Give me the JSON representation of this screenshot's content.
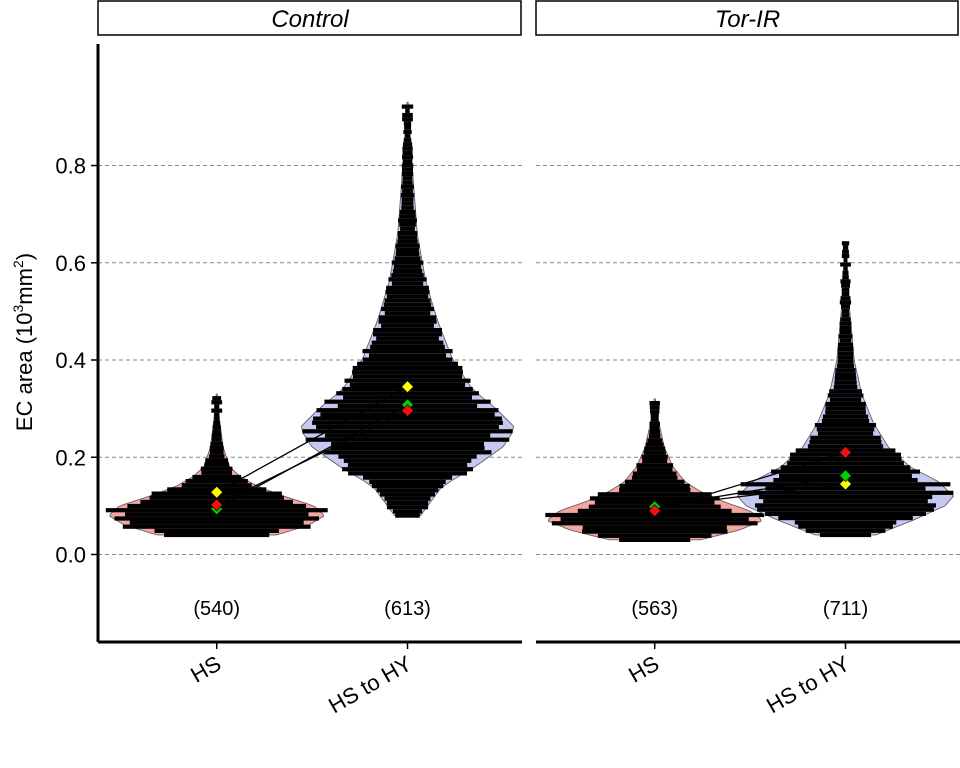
{
  "chart_data": {
    "type": "violin",
    "ylabel_main": "EC area (10",
    "ylabel_sup1": "3",
    "ylabel_mid": "mm",
    "ylabel_sup2": "2",
    "ylabel_end": ")",
    "ylim": [
      -0.18,
      1.05
    ],
    "yticks": [
      {
        "value": 0.0,
        "label": "0.0"
      },
      {
        "value": 0.2,
        "label": "0.2"
      },
      {
        "value": 0.4,
        "label": "0.4"
      },
      {
        "value": 0.6,
        "label": "0.6"
      },
      {
        "value": 0.8,
        "label": "0.8"
      }
    ],
    "grid": "horizontal-dashed",
    "categories": [
      "HS",
      "HS to HY"
    ],
    "colors": {
      "HS": "#f4a6a0",
      "HS to HY": "#c5c8f0",
      "replicate_1": "#ffff00",
      "replicate_2": "#00cc00",
      "replicate_3": "#ee1111",
      "beeswarm": "#000000"
    },
    "panels": [
      {
        "title": "Control",
        "groups": [
          {
            "category": "HS",
            "count_label": "(540)",
            "min": 0.04,
            "max": 0.33,
            "profile": [
              [
                0.04,
                0.55
              ],
              [
                0.06,
                0.85
              ],
              [
                0.08,
                1.0
              ],
              [
                0.1,
                0.9
              ],
              [
                0.12,
                0.62
              ],
              [
                0.14,
                0.38
              ],
              [
                0.16,
                0.22
              ],
              [
                0.18,
                0.12
              ],
              [
                0.22,
                0.06
              ],
              [
                0.27,
                0.03
              ],
              [
                0.33,
                0.005
              ]
            ],
            "means": [
              0.128,
              0.094,
              0.102
            ]
          },
          {
            "category": "HS to HY",
            "count_label": "(613)",
            "min": 0.08,
            "max": 0.93,
            "profile": [
              [
                0.08,
                0.12
              ],
              [
                0.14,
                0.32
              ],
              [
                0.18,
                0.62
              ],
              [
                0.22,
                0.88
              ],
              [
                0.26,
                1.0
              ],
              [
                0.3,
                0.82
              ],
              [
                0.34,
                0.6
              ],
              [
                0.4,
                0.42
              ],
              [
                0.48,
                0.28
              ],
              [
                0.56,
                0.17
              ],
              [
                0.66,
                0.09
              ],
              [
                0.78,
                0.05
              ],
              [
                0.93,
                0.005
              ]
            ],
            "means": [
              0.345,
              0.308,
              0.296
            ]
          }
        ]
      },
      {
        "title": "Tor-IR",
        "groups": [
          {
            "category": "HS",
            "count_label": "(563)",
            "min": 0.03,
            "max": 0.32,
            "profile": [
              [
                0.03,
                0.42
              ],
              [
                0.05,
                0.78
              ],
              [
                0.07,
                1.0
              ],
              [
                0.09,
                0.88
              ],
              [
                0.11,
                0.62
              ],
              [
                0.13,
                0.42
              ],
              [
                0.15,
                0.28
              ],
              [
                0.18,
                0.17
              ],
              [
                0.22,
                0.09
              ],
              [
                0.27,
                0.04
              ],
              [
                0.32,
                0.005
              ]
            ],
            "means": [
              0.098,
              0.098,
              0.09
            ]
          },
          {
            "category": "HS to HY",
            "count_label": "(711)",
            "min": 0.04,
            "max": 0.64,
            "profile": [
              [
                0.04,
                0.28
              ],
              [
                0.07,
                0.62
              ],
              [
                0.1,
                0.92
              ],
              [
                0.12,
                1.0
              ],
              [
                0.15,
                0.86
              ],
              [
                0.18,
                0.6
              ],
              [
                0.22,
                0.4
              ],
              [
                0.27,
                0.26
              ],
              [
                0.33,
                0.15
              ],
              [
                0.4,
                0.08
              ],
              [
                0.5,
                0.04
              ],
              [
                0.64,
                0.005
              ]
            ],
            "means": [
              0.145,
              0.162,
              0.21
            ]
          }
        ]
      }
    ]
  }
}
